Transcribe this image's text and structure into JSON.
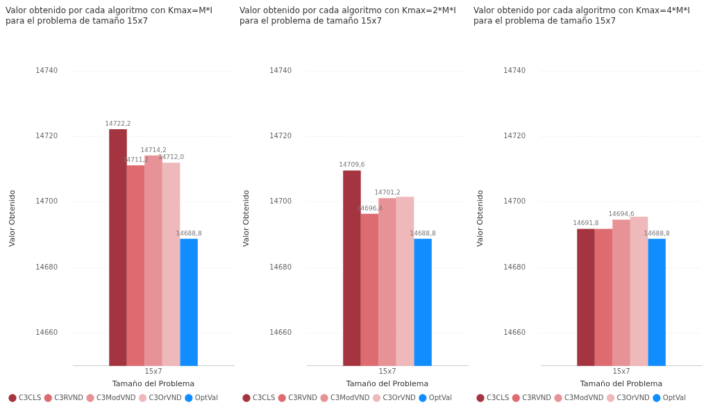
{
  "chart_data": [
    {
      "type": "bar",
      "title": "Valor obtenido por cada algoritmo con Kmax=M*I para el problema de tamaño 15x7",
      "xlabel": "Tamaño del Problema",
      "ylabel": "Valor Obtenido",
      "categories": [
        "15x7"
      ],
      "ylim": [
        14650,
        14740
      ],
      "yticks": [
        14660,
        14680,
        14700,
        14720,
        14740
      ],
      "grid": "y",
      "legend": "bottom left",
      "series": [
        {
          "name": "C3CLS",
          "color": "#a4343f",
          "values": [
            14722.2
          ],
          "value_labels": [
            "14722,2"
          ]
        },
        {
          "name": "C3RVND",
          "color": "#dd6b70",
          "values": [
            14711.2
          ],
          "value_labels": [
            "14711,2"
          ]
        },
        {
          "name": "C3ModVND",
          "color": "#e69296",
          "values": [
            14714.2
          ],
          "value_labels": [
            "14714,2"
          ]
        },
        {
          "name": "C3OrVND",
          "color": "#efb8bb",
          "values": [
            14712.0
          ],
          "value_labels": [
            "14712,0"
          ]
        },
        {
          "name": "OptVal",
          "color": "#118dff",
          "values": [
            14688.8
          ],
          "value_labels": [
            "14688,8"
          ]
        }
      ]
    },
    {
      "type": "bar",
      "title": "Valor obtenido por cada algoritmo con Kmax=2*M*I para el problema de tamaño 15x7",
      "xlabel": "Tamaño del Problema",
      "ylabel": "Valor Obtenido",
      "categories": [
        "15x7"
      ],
      "ylim": [
        14650,
        14740
      ],
      "yticks": [
        14660,
        14680,
        14700,
        14720,
        14740
      ],
      "grid": "y",
      "legend": "bottom left",
      "series": [
        {
          "name": "C3CLS",
          "color": "#a4343f",
          "values": [
            14709.6
          ],
          "value_labels": [
            "14709,6"
          ]
        },
        {
          "name": "C3RVND",
          "color": "#dd6b70",
          "values": [
            14696.4
          ],
          "value_labels": [
            "14696,4"
          ]
        },
        {
          "name": "C3ModVND",
          "color": "#e69296",
          "values": [
            14701.2
          ],
          "value_labels": [
            "14701,2"
          ]
        },
        {
          "name": "C3OrVND",
          "color": "#efb8bb",
          "values": [
            14701.6
          ],
          "value_labels": [
            null
          ]
        },
        {
          "name": "OptVal",
          "color": "#118dff",
          "values": [
            14688.8
          ],
          "value_labels": [
            "14688,8"
          ]
        }
      ]
    },
    {
      "type": "bar",
      "title": "Valor obtenido por cada algoritmo con Kmax=4*M*I para el problema de tamaño 15x7",
      "xlabel": "Tamaño del Problema",
      "ylabel": "Valor Obtenido",
      "categories": [
        "15x7"
      ],
      "ylim": [
        14650,
        14740
      ],
      "yticks": [
        14660,
        14680,
        14700,
        14720,
        14740
      ],
      "grid": "y",
      "legend": "bottom left",
      "series": [
        {
          "name": "C3CLS",
          "color": "#a4343f",
          "values": [
            14691.8
          ],
          "value_labels": [
            "14691,8"
          ]
        },
        {
          "name": "C3RVND",
          "color": "#dd6b70",
          "values": [
            14691.8
          ],
          "value_labels": [
            null
          ]
        },
        {
          "name": "C3ModVND",
          "color": "#e69296",
          "values": [
            14694.6
          ],
          "value_labels": [
            "14694,6"
          ]
        },
        {
          "name": "C3OrVND",
          "color": "#efb8bb",
          "values": [
            14695.5
          ],
          "value_labels": [
            null
          ]
        },
        {
          "name": "OptVal",
          "color": "#118dff",
          "values": [
            14688.8
          ],
          "value_labels": [
            "14688,8"
          ]
        }
      ]
    }
  ]
}
